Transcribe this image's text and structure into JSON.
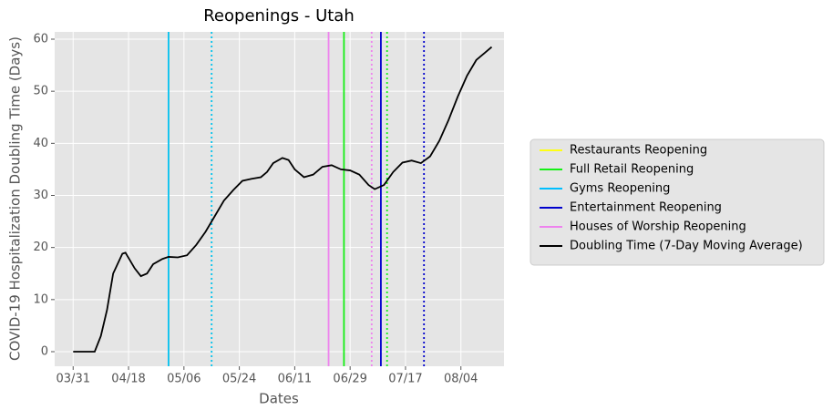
{
  "chart_data": {
    "type": "line",
    "title": "Reopenings - Utah",
    "x_label": "Dates",
    "y_label": "COVID-19 Hospitalization Doubling Time (Days)",
    "xlim": [
      "03/25",
      "08/18"
    ],
    "xticks": [
      "03/31",
      "04/18",
      "05/06",
      "05/24",
      "06/11",
      "06/29",
      "07/17",
      "08/04"
    ],
    "ylim": [
      -2.8,
      61.4
    ],
    "yticks": [
      0,
      10,
      20,
      30,
      40,
      50,
      60
    ],
    "grid": true,
    "legend": "right",
    "vline_styles": [
      "solid",
      "dotted"
    ],
    "series": [
      {
        "type": "vline",
        "name": "Restaurants Reopening",
        "color": "#ffff14",
        "x": [
          "05/01",
          "05/15"
        ]
      },
      {
        "type": "vline",
        "name": "Full Retail Reopening",
        "color": "#15f015",
        "x": [
          "06/27",
          "07/11"
        ]
      },
      {
        "type": "vline",
        "name": "Gyms Reopening",
        "color": "#00bfff",
        "x": [
          "05/01",
          "05/15"
        ]
      },
      {
        "type": "vline",
        "name": "Entertainment Reopening",
        "color": "#0000cd",
        "x": [
          "07/09",
          "07/23"
        ]
      },
      {
        "type": "vline",
        "name": "Houses of Worship Reopening",
        "color": "#ee82ee",
        "x": [
          "06/22",
          "07/06"
        ]
      },
      {
        "type": "line",
        "name": "Doubling Time (7-Day Moving Average)",
        "color": "#000000",
        "x": [
          "03/31",
          "04/07",
          "04/09",
          "04/11",
          "04/13",
          "04/16",
          "04/17",
          "04/18",
          "04/20",
          "04/22",
          "04/24",
          "04/26",
          "04/29",
          "05/01",
          "05/04",
          "05/07",
          "05/10",
          "05/13",
          "05/16",
          "05/19",
          "05/22",
          "05/25",
          "05/28",
          "05/31",
          "06/02",
          "06/04",
          "06/07",
          "06/09",
          "06/11",
          "06/14",
          "06/17",
          "06/20",
          "06/23",
          "06/26",
          "06/29",
          "07/02",
          "07/05",
          "07/07",
          "07/10",
          "07/13",
          "07/16",
          "07/19",
          "07/22",
          "07/25",
          "07/28",
          "07/31",
          "08/03",
          "08/06",
          "08/09",
          "08/12",
          "08/14"
        ],
        "values": [
          0,
          0,
          3,
          8,
          15,
          18.8,
          19,
          18,
          16,
          14.5,
          15,
          16.8,
          17.8,
          18.2,
          18.1,
          18.5,
          20.5,
          23,
          26,
          29,
          31,
          32.8,
          33.2,
          33.5,
          34.5,
          36.2,
          37.2,
          36.8,
          35,
          33.5,
          34,
          35.5,
          35.8,
          35,
          34.8,
          34,
          32,
          31.2,
          32,
          34.5,
          36.3,
          36.7,
          36.2,
          37.5,
          40.5,
          44.5,
          49,
          53,
          56,
          57.5,
          58.5
        ]
      }
    ]
  }
}
